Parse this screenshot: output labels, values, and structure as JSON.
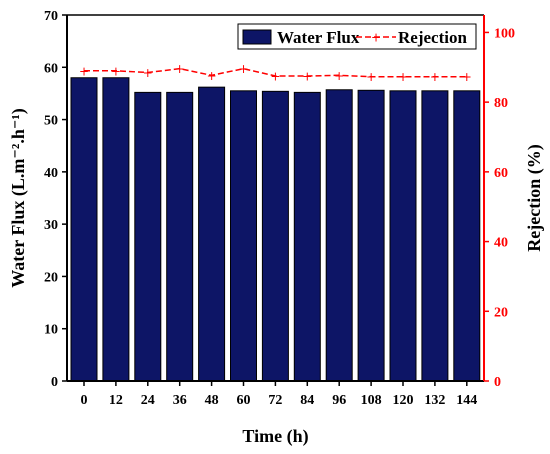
{
  "chart_data": {
    "type": "bar+line",
    "categories": [
      "0",
      "12",
      "24",
      "36",
      "48",
      "60",
      "72",
      "84",
      "96",
      "108",
      "120",
      "132",
      "144"
    ],
    "series": [
      {
        "name": "Water Flux",
        "type": "bar",
        "axis": "left",
        "values": [
          58.0,
          58.0,
          55.2,
          55.2,
          56.2,
          55.5,
          55.4,
          55.2,
          55.7,
          55.6,
          55.5,
          55.5,
          55.5
        ]
      },
      {
        "name": "Rejection",
        "type": "line",
        "axis": "right",
        "values": [
          89.0,
          89.0,
          88.5,
          89.6,
          87.7,
          89.6,
          87.5,
          87.5,
          87.7,
          87.3,
          87.3,
          87.3,
          87.3
        ]
      }
    ],
    "xlabel": "Time (h)",
    "ylabel_left": "Water Flux (L.m⁻².h⁻¹)",
    "ylabel_right": "Rejection (%)",
    "ylim_left": [
      0,
      70
    ],
    "ylim_right": [
      0,
      105
    ],
    "yticks_left": [
      "0",
      "10",
      "20",
      "30",
      "40",
      "50",
      "60",
      "70"
    ],
    "yticks_right": [
      "0",
      "20",
      "40",
      "60",
      "80",
      "100"
    ],
    "legend_position": "top-right",
    "grid": false,
    "colors": {
      "bar": "#0d1566",
      "bar_edge": "#000000",
      "line": "#ff0000",
      "right_axis": "#ff0000",
      "left_axis": "#000000"
    }
  }
}
